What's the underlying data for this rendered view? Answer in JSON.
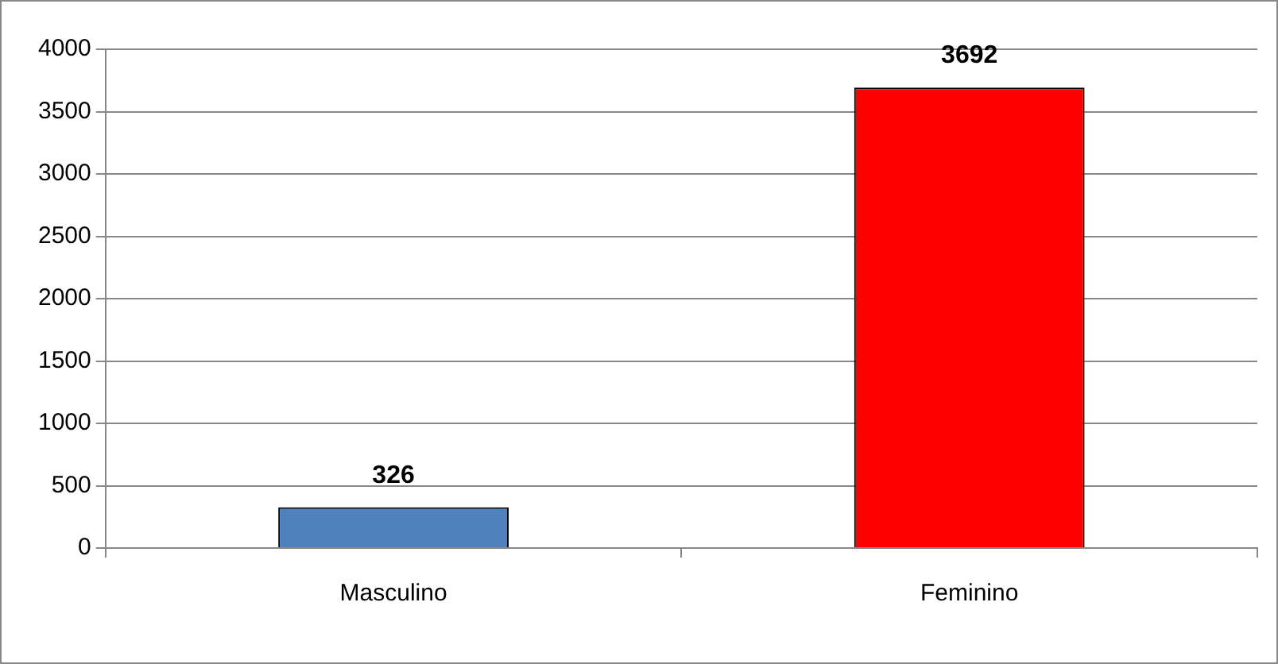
{
  "chart_data": {
    "type": "bar",
    "categories": [
      "Masculino",
      "Feminino"
    ],
    "values": [
      326,
      3692
    ],
    "colors": [
      "#4f81bd",
      "#ff0000"
    ],
    "ylim": [
      0,
      4000
    ],
    "yticks": [
      0,
      500,
      1000,
      1500,
      2000,
      2500,
      3000,
      3500,
      4000
    ],
    "grid": "y",
    "data_labels": true,
    "legend": false
  }
}
